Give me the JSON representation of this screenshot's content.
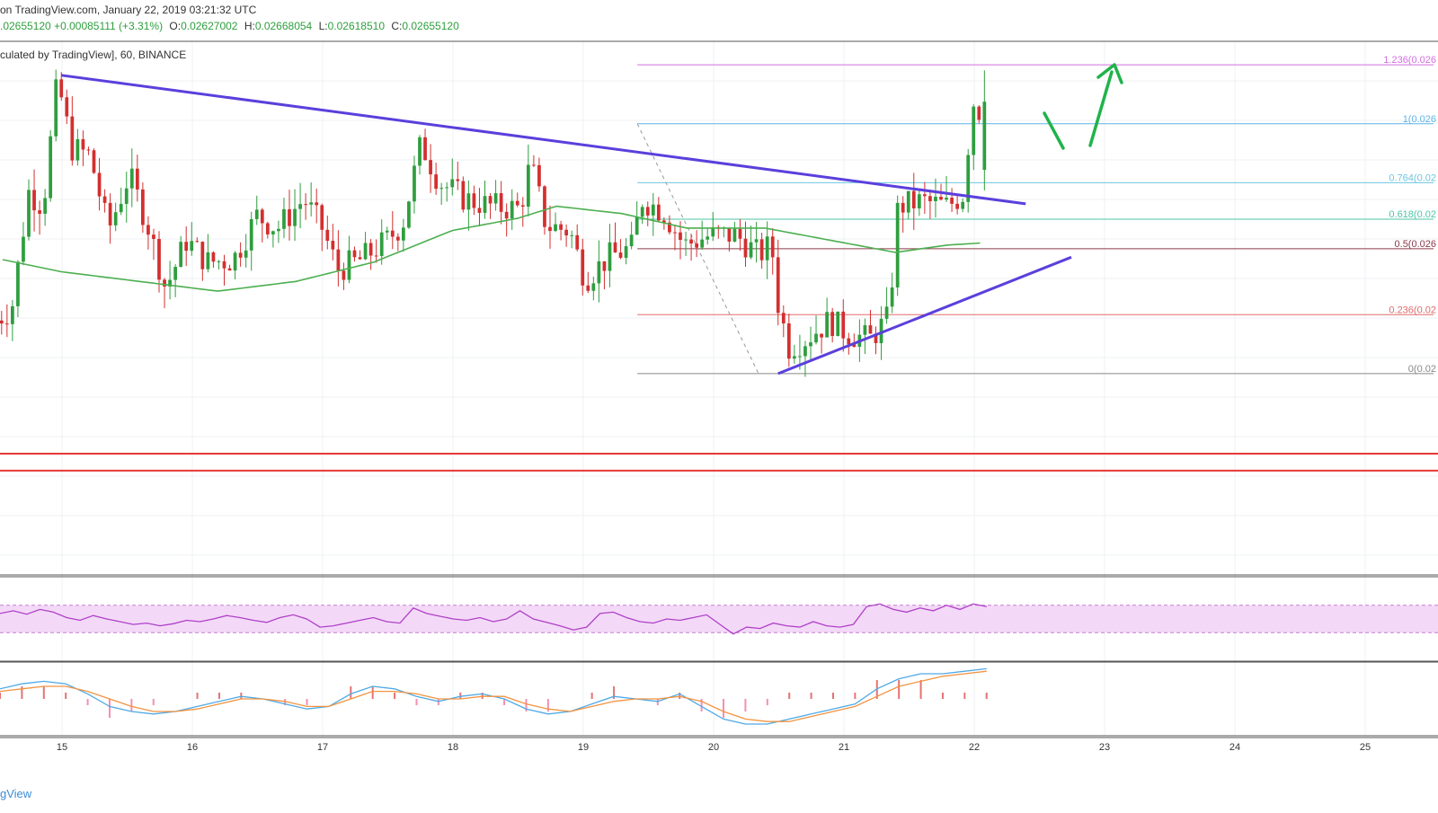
{
  "header": {
    "line1": "on TradingView.com, January 22, 2019 03:21:32 UTC",
    "close_value": ".02655120",
    "change": "+0.00085111 (+3.31%)",
    "open_label": "O:",
    "open": "0.02627002",
    "high_label": "H:",
    "high": "0.02668054",
    "low_label": "L:",
    "low": "0.02618510",
    "close_label": "C:",
    "close": "0.02655120",
    "line3": "culated by TradingView], 60, BINANCE"
  },
  "brand": "gView",
  "colors": {
    "up": "#2e9e3e",
    "down": "#d32f2f",
    "trendline": "#5b3fdc",
    "ma": "#4caf50",
    "rsi": "#b040c8",
    "rsi_band": "#f3d9f7",
    "support": "#e53935",
    "arrow": "#1fb34a",
    "macd": "#4fa9e6",
    "signal": "#f29340"
  },
  "chart_data": {
    "type": "candlestick",
    "timeframe": "60",
    "exchange": "BINANCE",
    "x_tick_labels": [
      "15",
      "16",
      "17",
      "18",
      "19",
      "20",
      "21",
      "22",
      "23",
      "24",
      "25"
    ],
    "x_range_days": [
      14.55,
      25.3
    ],
    "y_range_price": [
      0.0246,
      0.0268
    ],
    "last_candle": {
      "open": 0.02627002,
      "high": 0.02668054,
      "low": 0.0261851,
      "close": 0.0265512
    },
    "anchors": [
      {
        "t": 14.5,
        "p": 0.02565
      },
      {
        "t": 14.62,
        "p": 0.0257
      },
      {
        "t": 14.75,
        "p": 0.02618
      },
      {
        "t": 14.86,
        "p": 0.02612
      },
      {
        "t": 14.97,
        "p": 0.02664
      },
      {
        "t": 15.08,
        "p": 0.02636
      },
      {
        "t": 15.22,
        "p": 0.02633
      },
      {
        "t": 15.36,
        "p": 0.02602
      },
      {
        "t": 15.52,
        "p": 0.02625
      },
      {
        "t": 15.66,
        "p": 0.02605
      },
      {
        "t": 15.8,
        "p": 0.02578
      },
      {
        "t": 15.96,
        "p": 0.02598
      },
      {
        "t": 16.12,
        "p": 0.02589
      },
      {
        "t": 16.32,
        "p": 0.0259
      },
      {
        "t": 16.5,
        "p": 0.02608
      },
      {
        "t": 16.66,
        "p": 0.02603
      },
      {
        "t": 16.86,
        "p": 0.02615
      },
      {
        "t": 17.0,
        "p": 0.02603
      },
      {
        "t": 17.12,
        "p": 0.02586
      },
      {
        "t": 17.3,
        "p": 0.0259
      },
      {
        "t": 17.5,
        "p": 0.02598
      },
      {
        "t": 17.62,
        "p": 0.02605
      },
      {
        "t": 17.76,
        "p": 0.02638
      },
      {
        "t": 17.9,
        "p": 0.02622
      },
      {
        "t": 18.1,
        "p": 0.02615
      },
      {
        "t": 18.3,
        "p": 0.02612
      },
      {
        "t": 18.52,
        "p": 0.02611
      },
      {
        "t": 18.6,
        "p": 0.0263
      },
      {
        "t": 18.72,
        "p": 0.02604
      },
      {
        "t": 18.9,
        "p": 0.02602
      },
      {
        "t": 19.02,
        "p": 0.02582
      },
      {
        "t": 19.2,
        "p": 0.02591
      },
      {
        "t": 19.38,
        "p": 0.02595
      },
      {
        "t": 19.45,
        "p": 0.02615
      },
      {
        "t": 19.62,
        "p": 0.0261
      },
      {
        "t": 19.78,
        "p": 0.02596
      },
      {
        "t": 19.98,
        "p": 0.026
      },
      {
        "t": 20.18,
        "p": 0.026
      },
      {
        "t": 20.35,
        "p": 0.02592
      },
      {
        "t": 20.45,
        "p": 0.02596
      },
      {
        "t": 20.5,
        "p": 0.02572
      },
      {
        "t": 20.58,
        "p": 0.02554
      },
      {
        "t": 20.7,
        "p": 0.02557
      },
      {
        "t": 20.9,
        "p": 0.02565
      },
      {
        "t": 21.02,
        "p": 0.0256
      },
      {
        "t": 21.2,
        "p": 0.02557
      },
      {
        "t": 21.35,
        "p": 0.02566
      },
      {
        "t": 21.42,
        "p": 0.02612
      },
      {
        "t": 21.6,
        "p": 0.02614
      },
      {
        "t": 21.8,
        "p": 0.02612
      },
      {
        "t": 21.92,
        "p": 0.02617
      },
      {
        "t": 21.96,
        "p": 0.02638
      },
      {
        "t": 22.0,
        "p": 0.02655
      },
      {
        "t": 22.06,
        "p": 0.0265
      },
      {
        "t": 22.1,
        "p": 0.02658
      }
    ],
    "ma_anchors": [
      {
        "t": 14.55,
        "p": 0.0259
      },
      {
        "t": 15.0,
        "p": 0.02585
      },
      {
        "t": 15.6,
        "p": 0.02581
      },
      {
        "t": 16.2,
        "p": 0.02577
      },
      {
        "t": 16.8,
        "p": 0.02581
      },
      {
        "t": 17.4,
        "p": 0.02589
      },
      {
        "t": 18.0,
        "p": 0.02602
      },
      {
        "t": 18.5,
        "p": 0.02607
      },
      {
        "t": 18.8,
        "p": 0.02612
      },
      {
        "t": 19.3,
        "p": 0.02609
      },
      {
        "t": 19.8,
        "p": 0.02603
      },
      {
        "t": 20.4,
        "p": 0.02603
      },
      {
        "t": 20.9,
        "p": 0.02598
      },
      {
        "t": 21.4,
        "p": 0.02593
      },
      {
        "t": 21.8,
        "p": 0.02596
      },
      {
        "t": 22.1,
        "p": 0.02597
      }
    ],
    "trendlines": [
      {
        "name": "falling",
        "from": {
          "t": 15.0,
          "p": 0.02666
        },
        "to": {
          "t": 22.4,
          "p": 0.02613
        }
      },
      {
        "name": "rising",
        "from": {
          "t": 20.5,
          "p": 0.02543
        },
        "to": {
          "t": 22.75,
          "p": 0.02591
        }
      }
    ],
    "fib_swing": {
      "high": 0.02646,
      "low": 0.02543,
      "from_t": 19.42,
      "to_t": 20.35
    },
    "fib_levels": [
      {
        "label": "1.236",
        "value_text": "(0.026",
        "level": 1.236,
        "color": "#d36ee0"
      },
      {
        "label": "1",
        "value_text": "(0.026",
        "level": 1.0,
        "color": "#5fb3e8"
      },
      {
        "label": "0.764",
        "value_text": "(0.02",
        "level": 0.764,
        "color": "#6ec6e0"
      },
      {
        "label": "0.618",
        "value_text": "(0.02",
        "level": 0.618,
        "color": "#4dc6a6"
      },
      {
        "label": "0.5",
        "value_text": "(0.026",
        "level": 0.5,
        "color": "#8b3a4a"
      },
      {
        "label": "0.236",
        "value_text": "(0.02",
        "level": 0.236,
        "color": "#e06b6b"
      },
      {
        "label": "0",
        "value_text": "(0.02",
        "level": 0.0,
        "color": "#888888"
      }
    ],
    "support_levels": [
      0.0251,
      0.02503
    ],
    "rsi": [
      58,
      62,
      57,
      64,
      60,
      52,
      48,
      55,
      50,
      46,
      42,
      44,
      40,
      43,
      48,
      46,
      50,
      55,
      52,
      48,
      45,
      52,
      56,
      50,
      38,
      40,
      44,
      48,
      52,
      46,
      44,
      66,
      58,
      54,
      50,
      48,
      52,
      46,
      50,
      62,
      50,
      45,
      40,
      34,
      38,
      58,
      60,
      52,
      46,
      44,
      50,
      48,
      52,
      56,
      42,
      28,
      38,
      36,
      44,
      40,
      38,
      46,
      40,
      38,
      42,
      68,
      72,
      64,
      60,
      66,
      62,
      70,
      64,
      72,
      68
    ],
    "macd": [
      0.4,
      0.6,
      0.7,
      0.6,
      0.2,
      -0.3,
      -0.5,
      -0.6,
      -0.5,
      -0.3,
      -0.1,
      0.1,
      0.0,
      -0.2,
      -0.4,
      -0.3,
      0.2,
      0.5,
      0.4,
      0.1,
      -0.1,
      0.1,
      0.2,
      0.0,
      -0.4,
      -0.6,
      -0.5,
      -0.2,
      0.1,
      0.0,
      -0.1,
      0.2,
      -0.3,
      -0.8,
      -1.0,
      -1.0,
      -0.8,
      -0.6,
      -0.4,
      -0.2,
      0.4,
      0.8,
      1.0,
      1.0,
      1.1,
      1.2
    ],
    "signal": [
      0.3,
      0.4,
      0.5,
      0.5,
      0.3,
      0.0,
      -0.3,
      -0.5,
      -0.5,
      -0.4,
      -0.2,
      0.0,
      0.0,
      -0.1,
      -0.3,
      -0.3,
      0.0,
      0.3,
      0.3,
      0.2,
      0.0,
      0.0,
      0.1,
      0.1,
      -0.2,
      -0.4,
      -0.5,
      -0.3,
      -0.1,
      0.0,
      0.0,
      0.1,
      -0.1,
      -0.5,
      -0.8,
      -0.9,
      -0.9,
      -0.7,
      -0.5,
      -0.3,
      0.1,
      0.5,
      0.7,
      0.9,
      1.0,
      1.1
    ]
  }
}
